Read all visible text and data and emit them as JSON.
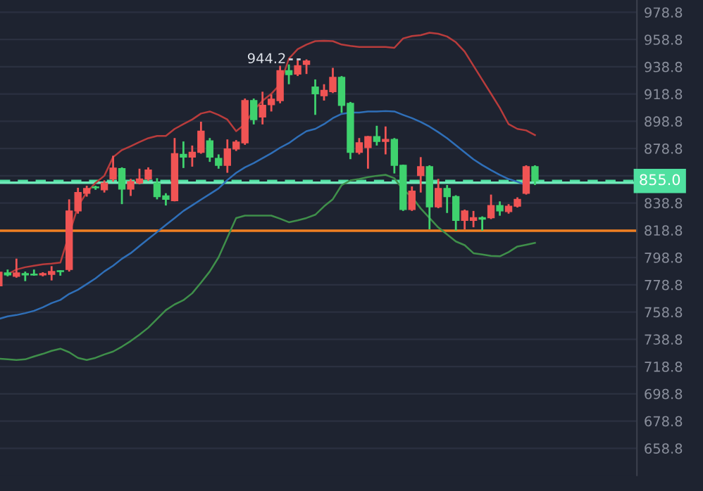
{
  "chart_data": {
    "type": "candlestick",
    "categories": [
      null,
      null,
      null,
      null,
      null,
      null,
      null,
      null,
      null,
      null,
      null,
      null,
      null,
      null,
      null,
      null,
      null,
      null,
      null,
      null,
      null,
      null,
      null,
      null,
      null,
      null,
      null,
      null,
      null,
      null,
      null,
      null,
      null,
      null,
      null,
      null,
      null,
      null,
      null,
      null,
      null,
      null,
      null,
      null,
      null,
      null,
      null,
      null,
      null,
      null,
      null,
      null,
      null,
      null,
      null,
      null,
      null,
      null,
      null,
      null,
      null,
      null
    ],
    "ohlc": [
      [
        778,
        792,
        776,
        788
      ],
      [
        787.5,
        790,
        785,
        786
      ],
      [
        785,
        798,
        784,
        787.5
      ],
      [
        787,
        788.5,
        781.5,
        786
      ],
      [
        786.5,
        790,
        785.5,
        786
      ],
      [
        786,
        788,
        785,
        787
      ],
      [
        786.5,
        792.5,
        782,
        788.5
      ],
      [
        788.5,
        789.5,
        785.5,
        788.5
      ],
      [
        790,
        841.5,
        788.5,
        833
      ],
      [
        833,
        850,
        831,
        846.5
      ],
      [
        846,
        851.5,
        843.5,
        849.5
      ],
      [
        850,
        851.5,
        848.5,
        850
      ],
      [
        848.5,
        855.5,
        846.5,
        853.5
      ],
      [
        856.5,
        873.5,
        854.5,
        864.5
      ],
      [
        864,
        865,
        838,
        849
      ],
      [
        849,
        856.5,
        844,
        854.5
      ],
      [
        853.5,
        864,
        852.5,
        856.5
      ],
      [
        856.5,
        865,
        855,
        863
      ],
      [
        853.5,
        857,
        841.5,
        843.5
      ],
      [
        844,
        846,
        837,
        841.5
      ],
      [
        840.5,
        886.5,
        840,
        875
      ],
      [
        874.5,
        884,
        864.5,
        872.5
      ],
      [
        872.5,
        881,
        865.5,
        876
      ],
      [
        876,
        898.5,
        875,
        891.5
      ],
      [
        884.5,
        886.5,
        869,
        872.5
      ],
      [
        871.5,
        874.5,
        864,
        866.5
      ],
      [
        866.5,
        885.5,
        861,
        878.5
      ],
      [
        878.5,
        885,
        877,
        883.5
      ],
      [
        883,
        915.5,
        881.5,
        914
      ],
      [
        914,
        915.5,
        896.5,
        900
      ],
      [
        902,
        920.5,
        896.5,
        910.5
      ],
      [
        911,
        918.5,
        906,
        915
      ],
      [
        914,
        939.5,
        912,
        936
      ],
      [
        936,
        940.5,
        926,
        933
      ],
      [
        933.5,
        943.5,
        932,
        939.5
      ],
      [
        940.5,
        944.2,
        933.5,
        943
      ],
      [
        924,
        929.5,
        903.5,
        919
      ],
      [
        917.5,
        926,
        914,
        921.5
      ],
      [
        920.5,
        938,
        919.5,
        931
      ],
      [
        931,
        932,
        905,
        910.5
      ],
      [
        912,
        913,
        871,
        876
      ],
      [
        876,
        886.5,
        874.5,
        883
      ],
      [
        879.5,
        888,
        864,
        887.5
      ],
      [
        887.5,
        895.5,
        881,
        884
      ],
      [
        884,
        895,
        874.5,
        885.5
      ],
      [
        885.5,
        886.5,
        860.5,
        866.5
      ],
      [
        866.5,
        867,
        833,
        834
      ],
      [
        834,
        851,
        833,
        847.5
      ],
      [
        859,
        872.5,
        846.5,
        865.5
      ],
      [
        865.5,
        866.5,
        819.5,
        836
      ],
      [
        836,
        856.5,
        835,
        849.5
      ],
      [
        849.5,
        852,
        831.5,
        843.5
      ],
      [
        843.5,
        844.5,
        818.5,
        826
      ],
      [
        826,
        834,
        819.5,
        833
      ],
      [
        826,
        833,
        821,
        828
      ],
      [
        828,
        829,
        818.5,
        827
      ],
      [
        828,
        845,
        827,
        837
      ],
      [
        837,
        840,
        829.5,
        833
      ],
      [
        832.5,
        838,
        831,
        836.5
      ],
      [
        836.5,
        843,
        835.5,
        841.5
      ],
      [
        846,
        866.5,
        845,
        865.5
      ],
      [
        865.5,
        866.5,
        852,
        855
      ]
    ],
    "colors": [
      "#f05454",
      "#3fd26e",
      "#f05454",
      "#3fd26e",
      "#3fd26e",
      "#f05454",
      "#f05454",
      "#3fd26e",
      "#f05454",
      "#f05454",
      "#f05454",
      "#3fd26e",
      "#f05454",
      "#f05454",
      "#3fd26e",
      "#f05454",
      "#f05454",
      "#f05454",
      "#3fd26e",
      "#3fd26e",
      "#f05454",
      "#3fd26e",
      "#f05454",
      "#f05454",
      "#3fd26e",
      "#3fd26e",
      "#f05454",
      "#f05454",
      "#f05454",
      "#3fd26e",
      "#f05454",
      "#f05454",
      "#f05454",
      "#3fd26e",
      "#f05454",
      "#f05454",
      "#3fd26e",
      "#f05454",
      "#f05454",
      "#3fd26e",
      "#3fd26e",
      "#f05454",
      "#f05454",
      "#3fd26e",
      "#f05454",
      "#3fd26e",
      "#3fd26e",
      "#f05454",
      "#f05454",
      "#3fd26e",
      "#f05454",
      "#3fd26e",
      "#3fd26e",
      "#f05454",
      "#f05454",
      "#3fd26e",
      "#f05454",
      "#3fd26e",
      "#f05454",
      "#f05454",
      "#f05454",
      "#3fd26e"
    ],
    "series": [
      {
        "type": "line",
        "color": "#b83c3c",
        "values": [
          null,
          786.6,
          790,
          791.7,
          792.8,
          793.8,
          794.3,
          795.1,
          815.8,
          836.4,
          846.7,
          853.6,
          858.8,
          872.5,
          877.7,
          880.5,
          883.6,
          886.4,
          888,
          888,
          893.2,
          896.7,
          900.1,
          904.5,
          906,
          903.5,
          900.1,
          891.5,
          896.7,
          907,
          913.8,
          919,
          925.9,
          944.8,
          951.7,
          955.1,
          957.6,
          957.9,
          957.6,
          955.1,
          954.1,
          953.4,
          953.4,
          953.4,
          953.4,
          952.7,
          959.6,
          961.3,
          962,
          963.8,
          963,
          961,
          956.8,
          949.9,
          939.6,
          929.3,
          919,
          908.6,
          896.7,
          893.2,
          892.1,
          888.7
        ]
      },
      {
        "type": "line",
        "color": "#2f6fb8",
        "values": [
          753.8,
          755.6,
          756.6,
          758,
          759.7,
          762.3,
          765.4,
          767.7,
          772.1,
          775.2,
          779.3,
          783.5,
          788.6,
          792.8,
          797.9,
          802,
          807.2,
          812.4,
          817.5,
          822.7,
          827.8,
          833,
          837.1,
          841.3,
          845.4,
          849.5,
          855.7,
          860.9,
          865,
          868.1,
          871.7,
          875.3,
          879.4,
          882.8,
          887.4,
          891.5,
          893.2,
          896.7,
          901.1,
          904.2,
          905.2,
          905.2,
          906,
          906,
          906.3,
          906,
          903.5,
          901.1,
          898.3,
          894.9,
          890.8,
          886.4,
          881.2,
          876,
          870.9,
          866.7,
          862.9,
          859.5,
          856.4,
          854.4,
          851.9,
          null
        ]
      },
      {
        "type": "line",
        "color": "#3f8f4a",
        "values": [
          724.6,
          724.1,
          723.6,
          724.1,
          726.2,
          728.1,
          730.3,
          731.9,
          729.3,
          725.2,
          723.6,
          725.2,
          727.7,
          729.8,
          733.4,
          737.5,
          742.2,
          747.3,
          753.8,
          760.2,
          764.4,
          767.5,
          772.6,
          780.4,
          788.6,
          799,
          813.4,
          827.8,
          829.6,
          829.6,
          829.6,
          829.6,
          827.3,
          824.7,
          826.1,
          827.8,
          830.2,
          836.4,
          841.6,
          851.9,
          855.4,
          856.4,
          857.8,
          858.8,
          859.5,
          857,
          848.5,
          843.3,
          834.8,
          827.8,
          820.9,
          815.8,
          810.6,
          807.9,
          802,
          801,
          800,
          799.7,
          802.8,
          806.9,
          808.2,
          809.6
        ]
      }
    ],
    "ylim": [
      639,
      987.8
    ],
    "yticks": [
      658.8,
      678.8,
      698.8,
      718.8,
      738.8,
      758.8,
      778.8,
      798.8,
      818.8,
      838.8,
      {
        "value": 858.8,
        "label": null
      },
      878.8,
      898.8,
      918.8,
      938.8,
      958.8,
      978.8
    ],
    "ref_lines": [
      {
        "axis": "y",
        "value": 855.0,
        "label": "855.0",
        "color": "#4fe0a0",
        "line_style": "dashed"
      },
      {
        "axis": "y",
        "value": 853.7,
        "color": "#6fe8b8",
        "line_style": "solid"
      },
      {
        "axis": "y",
        "value": 818.5,
        "color": "#f07f22",
        "line_style": "solid"
      }
    ],
    "annotations": [
      "944.2"
    ],
    "grid": "y",
    "tick_labels": "y"
  }
}
